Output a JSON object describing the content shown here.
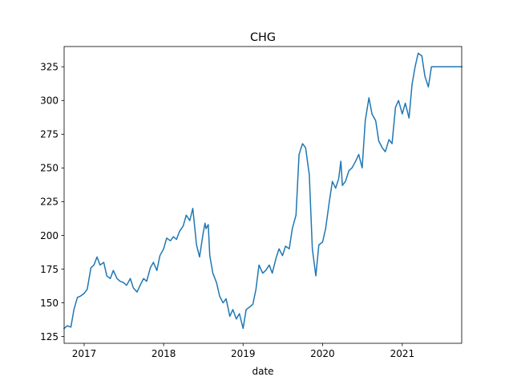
{
  "chart_data": {
    "type": "line",
    "title": "CHG",
    "xlabel": "date",
    "ylabel": "",
    "grid": false,
    "legend": "none",
    "x_range": [
      "2016-10-01",
      "2021-10-01"
    ],
    "ylim": [
      120,
      340
    ],
    "x_ticks": [
      "2017",
      "2018",
      "2019",
      "2020",
      "2021"
    ],
    "y_ticks": [
      "125",
      "150",
      "175",
      "200",
      "225",
      "250",
      "275",
      "300",
      "325"
    ],
    "y_tick_values": [
      125,
      150,
      175,
      200,
      225,
      250,
      275,
      300,
      325
    ],
    "line_color": "#1f77b4",
    "series": [
      {
        "x": [
          "2016-10-01",
          "2016-10-15",
          "2016-11-01",
          "2016-11-15",
          "2016-12-01",
          "2016-12-15",
          "2017-01-01",
          "2017-01-15",
          "2017-02-01",
          "2017-02-15",
          "2017-03-01",
          "2017-03-15",
          "2017-04-01",
          "2017-04-15",
          "2017-05-01",
          "2017-05-15",
          "2017-06-01",
          "2017-06-15",
          "2017-07-01",
          "2017-07-15",
          "2017-08-01",
          "2017-08-15",
          "2017-09-01",
          "2017-09-15",
          "2017-10-01",
          "2017-10-15",
          "2017-11-01",
          "2017-11-15",
          "2017-12-01",
          "2017-12-15",
          "2018-01-01",
          "2018-01-15",
          "2018-02-01",
          "2018-02-15",
          "2018-03-01",
          "2018-03-15",
          "2018-04-01",
          "2018-04-15",
          "2018-05-01",
          "2018-05-15",
          "2018-06-01",
          "2018-06-15",
          "2018-07-01",
          "2018-07-10",
          "2018-07-15",
          "2018-07-25",
          "2018-08-01",
          "2018-08-15",
          "2018-09-01",
          "2018-09-15",
          "2018-10-01",
          "2018-10-15",
          "2018-11-01",
          "2018-11-15",
          "2018-12-01",
          "2018-12-15",
          "2019-01-01",
          "2019-01-15",
          "2019-02-01",
          "2019-02-15",
          "2019-03-01",
          "2019-03-15",
          "2019-04-01",
          "2019-04-15",
          "2019-05-01",
          "2019-05-15",
          "2019-06-01",
          "2019-06-15",
          "2019-07-01",
          "2019-07-15",
          "2019-08-01",
          "2019-08-15",
          "2019-09-01",
          "2019-09-15",
          "2019-10-01",
          "2019-10-15",
          "2019-11-01",
          "2019-11-15",
          "2019-12-01",
          "2019-12-15",
          "2020-01-01",
          "2020-01-15",
          "2020-02-01",
          "2020-02-15",
          "2020-03-01",
          "2020-03-15",
          "2020-03-25",
          "2020-04-01",
          "2020-04-15",
          "2020-05-01",
          "2020-05-15",
          "2020-06-01",
          "2020-06-15",
          "2020-07-01",
          "2020-07-15",
          "2020-08-01",
          "2020-08-15",
          "2020-09-01",
          "2020-09-15",
          "2020-10-01",
          "2020-10-15",
          "2020-11-01",
          "2020-11-15",
          "2020-12-01",
          "2020-12-15",
          "2021-01-01",
          "2021-01-15",
          "2021-02-01",
          "2021-02-15",
          "2021-03-01",
          "2021-03-15",
          "2021-04-01",
          "2021-04-15",
          "2021-05-01",
          "2021-05-15",
          "2021-06-01",
          "2021-06-15",
          "2021-07-01",
          "2021-07-15",
          "2021-08-01",
          "2021-08-15",
          "2021-09-01",
          "2021-09-15",
          "2021-10-01"
        ],
        "values": [
          131,
          133,
          132,
          145,
          154,
          155,
          157,
          160,
          176,
          178,
          184,
          178,
          180,
          170,
          168,
          174,
          168,
          166,
          165,
          163,
          168,
          161,
          158,
          163,
          168,
          166,
          176,
          180,
          174,
          185,
          190,
          198,
          196,
          199,
          197,
          203,
          207,
          215,
          211,
          220,
          193,
          184,
          201,
          209,
          205,
          208,
          185,
          172,
          165,
          155,
          150,
          153,
          140,
          145,
          138,
          142,
          131,
          145,
          147,
          149,
          160,
          178,
          172,
          174,
          178,
          172,
          183,
          190,
          185,
          192,
          190,
          205,
          215,
          260,
          268,
          265,
          245,
          190,
          170,
          193,
          195,
          205,
          225,
          240,
          235,
          242,
          255,
          237,
          240,
          248,
          250,
          255,
          260,
          250,
          285,
          302,
          290,
          285,
          270,
          265,
          262,
          271,
          268,
          295,
          300,
          290,
          298,
          287,
          312,
          325,
          335,
          333,
          318,
          310,
          325,
          325,
          325,
          325,
          325,
          325,
          325,
          325,
          325,
          325
        ]
      }
    ]
  }
}
